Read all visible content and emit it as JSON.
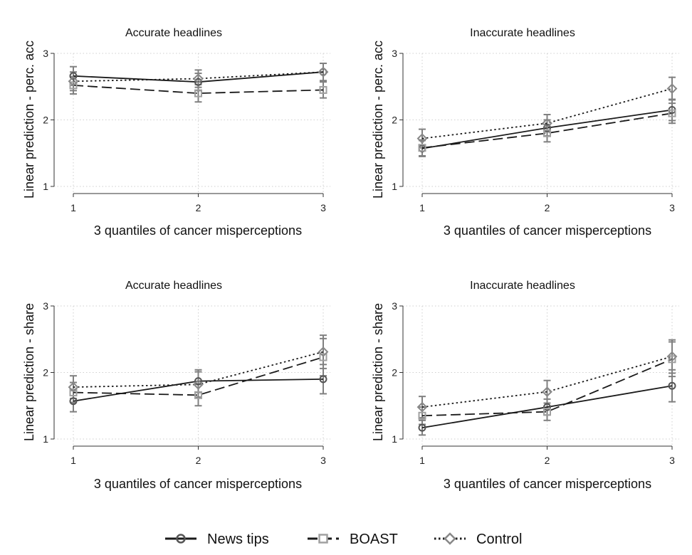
{
  "chart_data": [
    {
      "type": "line",
      "title": "Accurate headlines",
      "xlabel": "3 quantiles of cancer misperceptions",
      "ylabel": "Linear prediction - perc. acc",
      "x": [
        1,
        2,
        3
      ],
      "x_ticks": [
        "1",
        "2",
        "3"
      ],
      "ylim": [
        1,
        3
      ],
      "y_ticks": [
        "1",
        "2",
        "3"
      ],
      "grid": true,
      "series": [
        {
          "name": "News tips",
          "values": [
            2.66,
            2.57,
            2.72
          ],
          "lower": [
            2.52,
            2.44,
            2.59
          ],
          "upper": [
            2.8,
            2.7,
            2.85
          ]
        },
        {
          "name": "BOAST",
          "values": [
            2.52,
            2.4,
            2.45
          ],
          "lower": [
            2.39,
            2.27,
            2.33
          ],
          "upper": [
            2.65,
            2.53,
            2.57
          ]
        },
        {
          "name": "Control",
          "values": [
            2.58,
            2.62,
            2.72
          ],
          "lower": [
            2.44,
            2.49,
            2.59
          ],
          "upper": [
            2.72,
            2.75,
            2.85
          ]
        }
      ]
    },
    {
      "type": "line",
      "title": "Inaccurate headlines",
      "xlabel": "3 quantiles of cancer misperceptions",
      "ylabel": "Linear prediction - perc. acc",
      "x": [
        1,
        2,
        3
      ],
      "x_ticks": [
        "1",
        "2",
        "3"
      ],
      "ylim": [
        1,
        3
      ],
      "y_ticks": [
        "1",
        "2",
        "3"
      ],
      "grid": true,
      "series": [
        {
          "name": "News tips",
          "values": [
            1.57,
            1.88,
            2.15
          ],
          "lower": [
            1.45,
            1.76,
            1.99
          ],
          "upper": [
            1.69,
            2.0,
            2.31
          ]
        },
        {
          "name": "BOAST",
          "values": [
            1.58,
            1.8,
            2.1
          ],
          "lower": [
            1.46,
            1.67,
            1.95
          ],
          "upper": [
            1.7,
            1.93,
            2.25
          ]
        },
        {
          "name": "Control",
          "values": [
            1.72,
            1.95,
            2.47
          ],
          "lower": [
            1.58,
            1.82,
            2.3
          ],
          "upper": [
            1.86,
            2.08,
            2.64
          ]
        }
      ]
    },
    {
      "type": "line",
      "title": "Accurate headlines",
      "xlabel": "3 quantiles of cancer misperceptions",
      "ylabel": "Linear prediction - share",
      "x": [
        1,
        2,
        3
      ],
      "x_ticks": [
        "1",
        "2",
        "3"
      ],
      "ylim": [
        1,
        3
      ],
      "y_ticks": [
        "1",
        "2",
        "3"
      ],
      "grid": true,
      "series": [
        {
          "name": "News tips",
          "values": [
            1.57,
            1.87,
            1.9
          ],
          "lower": [
            1.41,
            1.7,
            1.68
          ],
          "upper": [
            1.73,
            2.04,
            2.12
          ]
        },
        {
          "name": "BOAST",
          "values": [
            1.7,
            1.66,
            2.23
          ],
          "lower": [
            1.55,
            1.5,
            1.95
          ],
          "upper": [
            1.85,
            1.82,
            2.51
          ]
        },
        {
          "name": "Control",
          "values": [
            1.78,
            1.82,
            2.31
          ],
          "lower": [
            1.61,
            1.63,
            2.06
          ],
          "upper": [
            1.95,
            2.01,
            2.56
          ]
        }
      ]
    },
    {
      "type": "line",
      "title": "Inaccurate headlines",
      "xlabel": "3 quantiles of cancer misperceptions",
      "ylabel": "Linear prediction - share",
      "x": [
        1,
        2,
        3
      ],
      "x_ticks": [
        "1",
        "2",
        "3"
      ],
      "ylim": [
        1,
        3
      ],
      "y_ticks": [
        "1",
        "2",
        "3"
      ],
      "grid": true,
      "series": [
        {
          "name": "News tips",
          "values": [
            1.17,
            1.48,
            1.8
          ],
          "lower": [
            1.06,
            1.36,
            1.56
          ],
          "upper": [
            1.28,
            1.6,
            2.04
          ]
        },
        {
          "name": "BOAST",
          "values": [
            1.35,
            1.41,
            2.2
          ],
          "lower": [
            1.22,
            1.28,
            1.94
          ],
          "upper": [
            1.48,
            1.54,
            2.46
          ]
        },
        {
          "name": "Control",
          "values": [
            1.48,
            1.71,
            2.24
          ],
          "lower": [
            1.32,
            1.54,
            1.99
          ],
          "upper": [
            1.64,
            1.88,
            2.49
          ]
        }
      ]
    }
  ],
  "legend": {
    "placement": "bottom",
    "items": [
      {
        "label": "News tips",
        "marker": "circle",
        "line": "solid"
      },
      {
        "label": "BOAST",
        "marker": "square",
        "line": "long-dash"
      },
      {
        "label": "Control",
        "marker": "diamond",
        "line": "dotted"
      }
    ]
  },
  "colors": {
    "News tips": "#1a1a1a",
    "BOAST": "#1a1a1a",
    "Control": "#1a1a1a",
    "News tips_marker": "#555555",
    "BOAST_marker": "#a0a0a0",
    "Control_marker": "#888888",
    "ci": "#808080"
  }
}
